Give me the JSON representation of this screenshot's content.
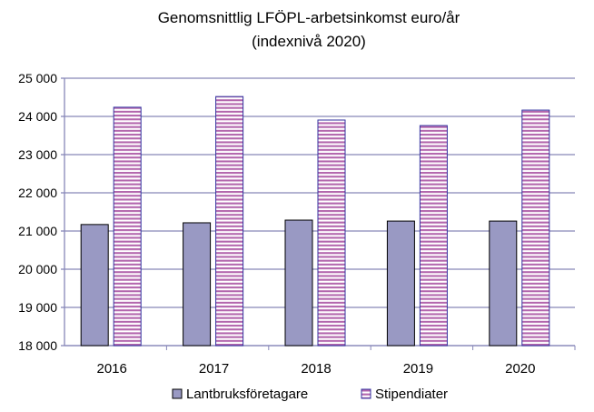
{
  "chart_data": {
    "type": "bar",
    "title": [
      "Genomsnittlig LFÖPL-arbetsinkomst euro/år",
      "(indexnivå 2020)"
    ],
    "xlabel": "",
    "ylabel": "",
    "categories": [
      "2016",
      "2017",
      "2018",
      "2019",
      "2020"
    ],
    "ylim": [
      18000,
      25000
    ],
    "yticks": [
      18000,
      19000,
      20000,
      21000,
      22000,
      23000,
      24000,
      25000
    ],
    "ytick_labels": [
      "18 000",
      "19 000",
      "20 000",
      "21 000",
      "22 000",
      "23 000",
      "24 000",
      "25 000"
    ],
    "grid": true,
    "legend_position": "bottom",
    "series": [
      {
        "name": "Lantbruksföretagare",
        "values": [
          21170,
          21215,
          21285,
          21260,
          21260
        ],
        "color": "#9999c3",
        "pattern": "solid"
      },
      {
        "name": "Stipendiater",
        "values": [
          24240,
          24520,
          23905,
          23760,
          24165
        ],
        "color": "#b366ad",
        "pattern": "horizontal-stripes"
      }
    ]
  }
}
